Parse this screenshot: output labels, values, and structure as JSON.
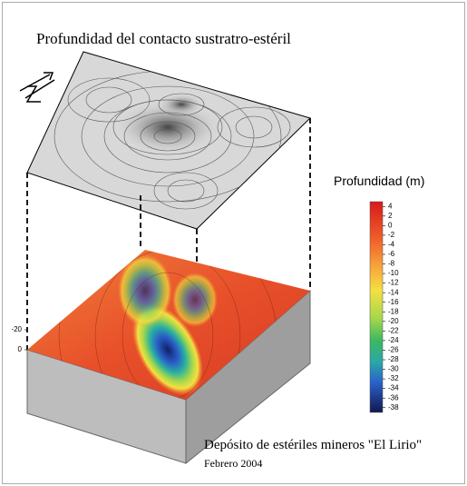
{
  "title": "Profundidad del contacto sustratro-estéril",
  "colorbar": {
    "title": "Profundidad (m)",
    "lim": [
      -39,
      5
    ],
    "ticks": [
      4,
      2,
      0,
      -2,
      -4,
      -6,
      -8,
      -10,
      -12,
      -14,
      -16,
      -18,
      -20,
      -22,
      -24,
      -26,
      -28,
      -30,
      -32,
      -34,
      -36,
      -38
    ]
  },
  "z_axis": {
    "ticks": [
      0,
      -20
    ]
  },
  "caption": {
    "title": "Depósito de estériles mineros \"El Lirio\"",
    "date": "Febrero 2004"
  }
}
